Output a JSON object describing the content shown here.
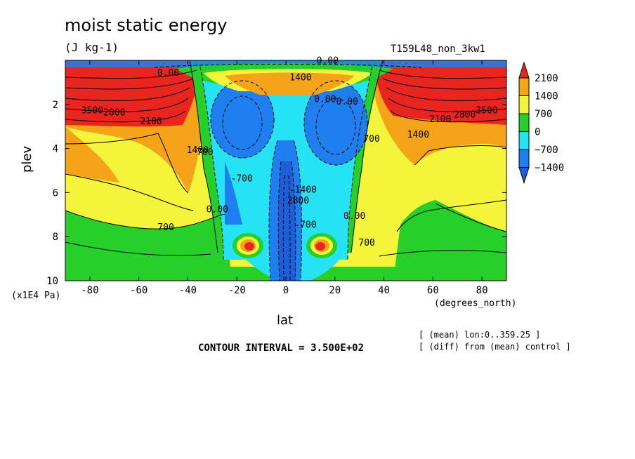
{
  "header": {
    "title": "moist static energy",
    "units": "(J kg-1)",
    "run_id": "T159L48_non_3kw1"
  },
  "footer": {
    "contour_interval": "CONTOUR INTERVAL = 3.500E+02",
    "note_mean": "[ (mean) lon:0..359.25 ]",
    "note_diff": "[ (diff) from (mean) control ]"
  },
  "chart_data": {
    "type": "contour",
    "xlabel": "lat",
    "ylabel": "plev",
    "x_unit_label": "(degrees_north)",
    "y_unit_label": "(x1E4 Pa)",
    "xlim": [
      -90,
      90
    ],
    "ylim": [
      10,
      0
    ],
    "x_ticks": [
      -80,
      -60,
      -40,
      -20,
      0,
      20,
      40,
      60,
      80
    ],
    "y_ticks": [
      2,
      4,
      6,
      8,
      10
    ],
    "colorbar": {
      "levels": [
        2100,
        1400,
        700,
        0,
        -700,
        -1400
      ],
      "level_labels": [
        "2100",
        "1400",
        "700",
        "0",
        "−700",
        "−1400"
      ],
      "colors": [
        "#e8261f",
        "#f5a41a",
        "#f4f43a",
        "#27cf2b",
        "#25e3f2",
        "#1f7ff0",
        "#1c5fd8"
      ]
    },
    "contour_labels": [
      {
        "text": "3500",
        "x": -79,
        "y": 2.4
      },
      {
        "text": "2800",
        "x": -70,
        "y": 2.5
      },
      {
        "text": "2100",
        "x": -55,
        "y": 2.9
      },
      {
        "text": "1400",
        "x": -36,
        "y": 4.2
      },
      {
        "text": "700",
        "x": -33,
        "y": 4.3
      },
      {
        "text": "-700",
        "x": -18,
        "y": 5.5
      },
      {
        "text": "0.00",
        "x": -28,
        "y": 6.9
      },
      {
        "text": "700",
        "x": -49,
        "y": 7.7
      },
      {
        "text": "0.00",
        "x": -48,
        "y": 0.7
      },
      {
        "text": "1400",
        "x": 6,
        "y": 0.9
      },
      {
        "text": "0.00",
        "x": 16,
        "y": 1.9
      },
      {
        "text": "0.00",
        "x": 25,
        "y": 2.0
      },
      {
        "text": "2100",
        "x": 63,
        "y": 2.8
      },
      {
        "text": "2800",
        "x": 73,
        "y": 2.6
      },
      {
        "text": "3500",
        "x": 82,
        "y": 2.4
      },
      {
        "text": "1400",
        "x": 54,
        "y": 3.5
      },
      {
        "text": "700",
        "x": 35,
        "y": 3.7
      },
      {
        "text": "0.00",
        "x": 28,
        "y": 7.2
      },
      {
        "text": "700",
        "x": 33,
        "y": 8.4
      },
      {
        "text": "2800",
        "x": 5,
        "y": 6.5
      },
      {
        "text": "-1400",
        "x": 7,
        "y": 6.0
      },
      {
        "text": "-700",
        "x": 8,
        "y": 7.6
      },
      {
        "text": "0.00",
        "x": 17,
        "y": 0.15
      }
    ]
  }
}
